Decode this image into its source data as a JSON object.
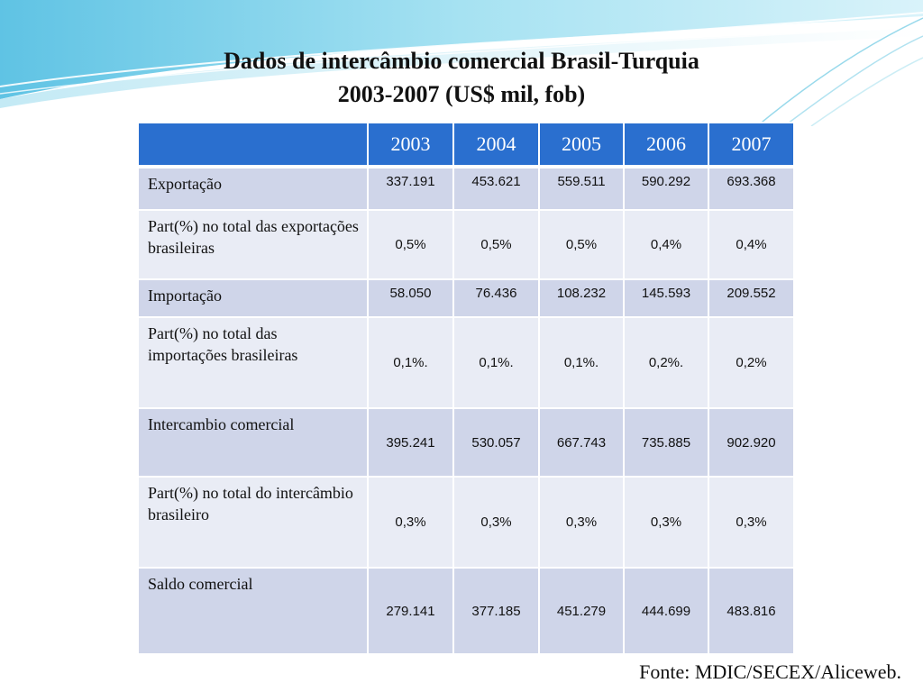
{
  "slide": {
    "title_line1": "Dados de intercâmbio comercial Brasil-Turquia",
    "title_line2": "2003-2007 (US$ mil, fob)"
  },
  "table": {
    "corner": "",
    "years": [
      "2003",
      "2004",
      "2005",
      "2006",
      "2007"
    ],
    "rows": [
      {
        "label": "Exportação",
        "values": [
          "337.191",
          "453.621",
          "559.511",
          "590.292",
          "693.368"
        ]
      },
      {
        "label": "Part(%) no total das exportações brasileiras",
        "values": [
          "0,5%",
          "0,5%",
          "0,5%",
          "0,4%",
          "0,4%"
        ]
      },
      {
        "label": "Importação",
        "values": [
          "58.050",
          "76.436",
          "108.232",
          "145.593",
          "209.552"
        ]
      },
      {
        "label": "Part(%) no total das importações brasileiras",
        "values": [
          "0,1%.",
          "0,1%.",
          "0,1%.",
          "0,2%.",
          "0,2%"
        ]
      },
      {
        "label": "Intercambio comercial",
        "values": [
          "395.241",
          "530.057",
          "667.743",
          "735.885",
          "902.920"
        ]
      },
      {
        "label": "Part(%) no total do intercâmbio brasileiro",
        "values": [
          "0,3%",
          "0,3%",
          "0,3%",
          "0,3%",
          "0,3%"
        ]
      },
      {
        "label": "Saldo comercial",
        "values": [
          "279.141",
          "377.185",
          "451.279",
          "444.699",
          "483.816"
        ]
      }
    ]
  },
  "source": {
    "text": "Fonte: MDIC/SECEX/Aliceweb."
  },
  "colors": {
    "header_blue": "#2a6fcf",
    "row_dark": "#cfd5e9",
    "row_light": "#e9ecf5",
    "wave_cyan": "#8fd3ea"
  }
}
